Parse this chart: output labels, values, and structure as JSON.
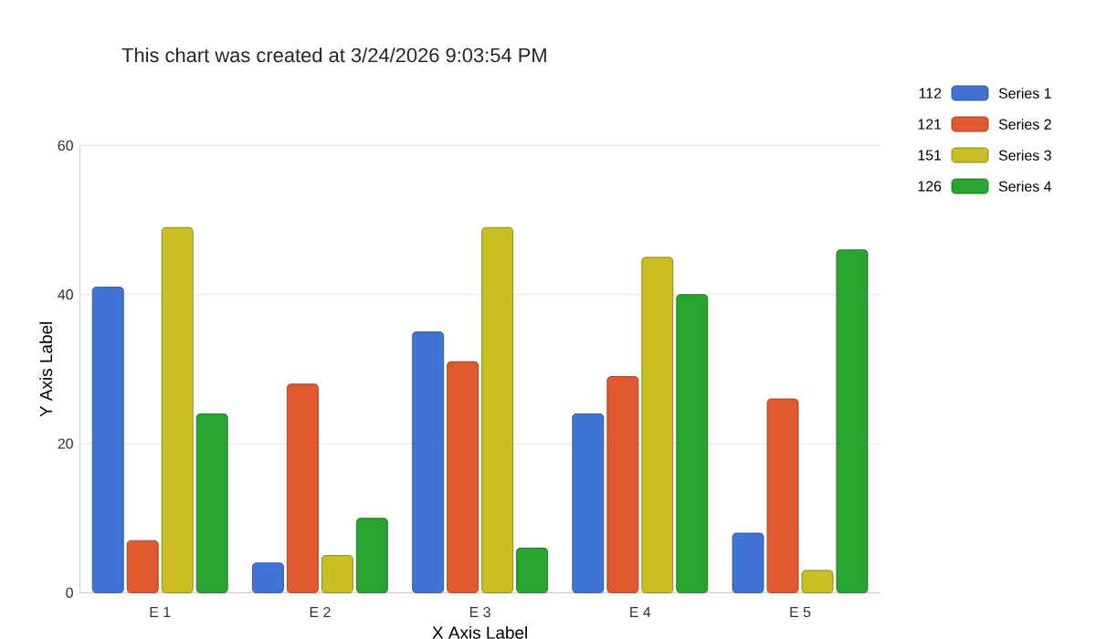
{
  "chart_data": {
    "type": "bar",
    "title": "This chart was created at 3/24/2026 9:03:54 PM",
    "xlabel": "X Axis Label",
    "ylabel": "Y Axis Label",
    "categories": [
      "E 1",
      "E 2",
      "E 3",
      "E 4",
      "E 5"
    ],
    "series": [
      {
        "name": "Series 1",
        "color": "#3f74d6",
        "values": [
          41,
          4,
          35,
          24,
          8
        ]
      },
      {
        "name": "Series 2",
        "color": "#e2582f",
        "values": [
          7,
          28,
          31,
          29,
          26
        ]
      },
      {
        "name": "Series 3",
        "color": "#c9bf22",
        "values": [
          49,
          5,
          49,
          45,
          3
        ]
      },
      {
        "name": "Series 4",
        "color": "#27a52e",
        "values": [
          24,
          10,
          6,
          40,
          46
        ]
      }
    ],
    "annotations": [
      "112",
      "121",
      "151",
      "126"
    ],
    "ylim": [
      0,
      60
    ],
    "yticks": [
      0,
      20,
      40,
      60
    ],
    "grid": "y",
    "legend": "top right"
  }
}
